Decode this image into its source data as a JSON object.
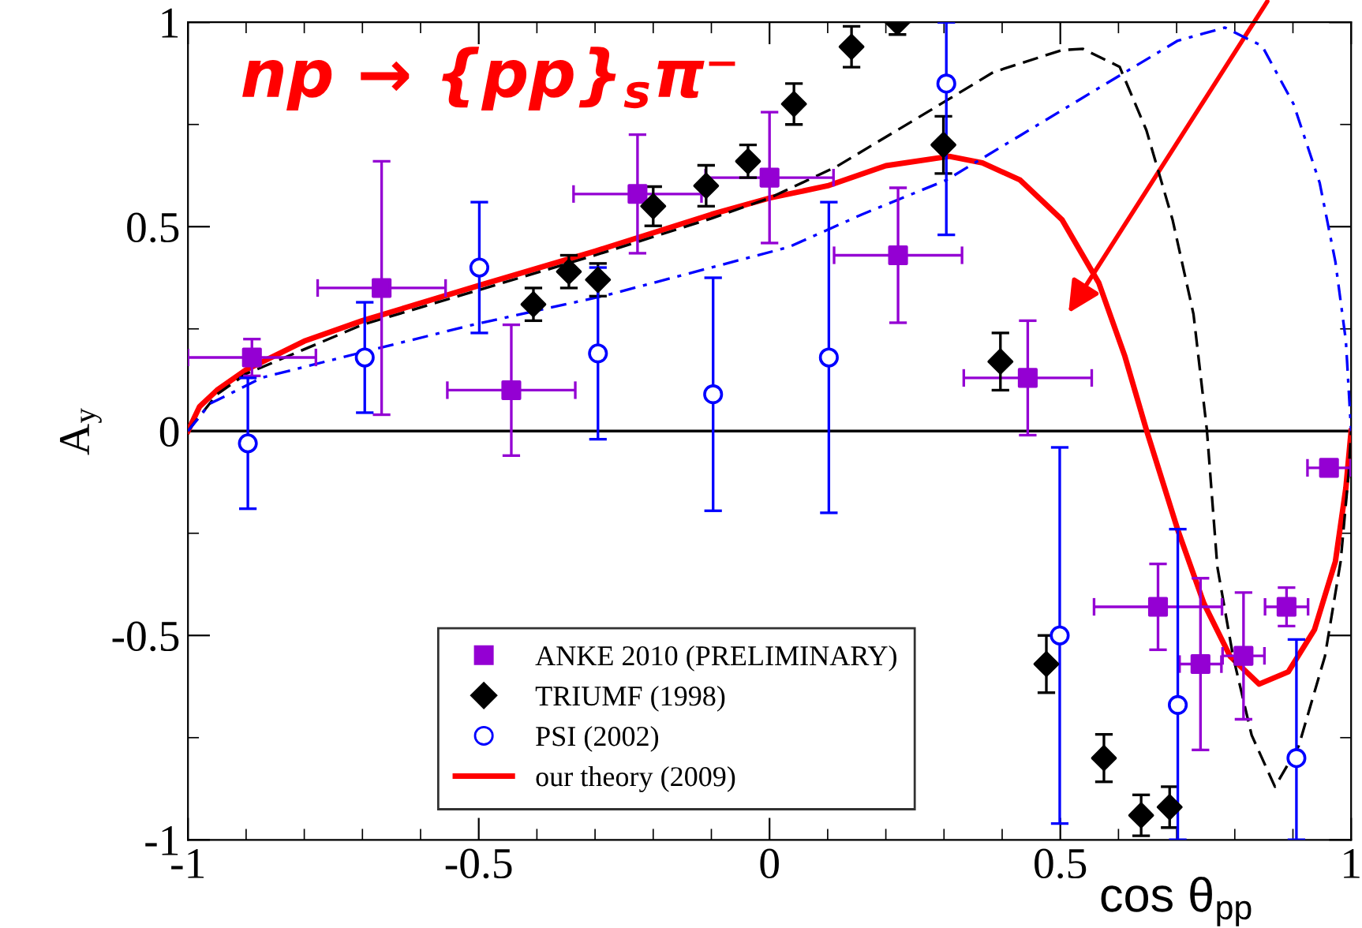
{
  "chart_data": {
    "type": "scatter",
    "title": "np → {pp}$_{s}$π⁻",
    "xlabel": "cos θ$_{pp}$",
    "ylabel": "A$_{y}$",
    "xlim": [
      -1,
      1
    ],
    "ylim": [
      -1,
      1
    ],
    "xticks": [
      -1,
      -0.5,
      0,
      0.5,
      1
    ],
    "yticks": [
      -1,
      -0.5,
      0,
      0.5,
      1
    ],
    "grid": false,
    "legend": "bottom",
    "ref_lines": [
      {
        "axis": "y",
        "value": 0,
        "color": "#000000",
        "line_style": "solid"
      }
    ],
    "series": [
      {
        "name": "ANKE 2010 (PRELIMINARY)",
        "color": "#9400d3",
        "marker": "square",
        "x": [
          -0.89,
          -0.667,
          -0.444,
          -0.227,
          0.0,
          0.221,
          0.444,
          0.668,
          0.741,
          0.815,
          0.889,
          0.962
        ],
        "values": [
          0.18,
          0.35,
          0.1,
          0.58,
          0.62,
          0.43,
          0.13,
          -0.43,
          -0.57,
          -0.55,
          -0.43,
          -0.09
        ],
        "errors": [
          0.045,
          0.31,
          0.16,
          0.145,
          0.16,
          0.165,
          0.14,
          0.105,
          0.21,
          0.155,
          0.047,
          0.015
        ],
        "xerrors": [
          0.11,
          0.11,
          0.11,
          0.11,
          0.11,
          0.11,
          0.11,
          0.11,
          0.036,
          0.036,
          0.037,
          0.037
        ]
      },
      {
        "name": "TRIUMF (1998)",
        "color": "#000000",
        "marker": "diamond",
        "x": [
          -0.406,
          -0.345,
          -0.295,
          -0.2,
          -0.109,
          -0.037,
          0.042,
          0.141,
          0.22,
          0.299,
          0.397,
          0.476,
          0.575,
          0.639,
          0.688
        ],
        "values": [
          0.31,
          0.39,
          0.37,
          0.55,
          0.6,
          0.66,
          0.8,
          0.94,
          1.0,
          0.7,
          0.17,
          -0.57,
          -0.8,
          -0.94,
          -0.92
        ],
        "errors": [
          0.04,
          0.04,
          0.04,
          0.048,
          0.05,
          0.04,
          0.05,
          0.05,
          [
            0.97,
            1.0
          ],
          0.07,
          0.07,
          0.07,
          0.058,
          0.05,
          0.05
        ]
      },
      {
        "name": "PSI (2002)",
        "color": "#0000ff",
        "marker": "circle",
        "x": [
          -0.897,
          -0.696,
          -0.499,
          -0.295,
          -0.097,
          0.102,
          0.304,
          0.499,
          0.702,
          0.906
        ],
        "values": [
          -0.03,
          0.18,
          0.4,
          0.19,
          0.09,
          0.18,
          0.85,
          -0.5,
          -0.67,
          -0.8
        ],
        "errors": [
          0.16,
          0.135,
          0.16,
          0.21,
          0.285,
          0.38,
          [
            0.48,
            1.0
          ],
          0.46,
          [
            -1.0,
            -0.24
          ],
          [
            -1.0,
            -0.51
          ]
        ]
      },
      {
        "name": "our theory (2009)",
        "type": "line",
        "color": "#ff0000",
        "line_style": "solid",
        "marker": "none",
        "x": [
          -1,
          -0.98,
          -0.95,
          -0.9,
          -0.8,
          -0.7,
          -0.5,
          -0.3,
          -0.1,
          0.0,
          0.1,
          0.2,
          0.309,
          0.366,
          0.431,
          0.503,
          0.566,
          0.611,
          0.648,
          0.702,
          0.747,
          0.792,
          0.842,
          0.892,
          0.937,
          0.973,
          0.991,
          1.0
        ],
        "values": [
          0,
          0.06,
          0.1,
          0.15,
          0.22,
          0.27,
          0.356,
          0.44,
          0.53,
          0.57,
          0.6,
          0.649,
          0.672,
          0.656,
          0.614,
          0.517,
          0.363,
          0.183,
          0.003,
          -0.242,
          -0.422,
          -0.551,
          -0.619,
          -0.589,
          -0.486,
          -0.319,
          -0.139,
          0
        ]
      },
      {
        "type": "line",
        "color": "#000000",
        "line_style": "dashed",
        "marker": "none",
        "x": [
          -1,
          -0.95,
          -0.9,
          -0.7,
          -0.5,
          -0.3,
          -0.1,
          0.0,
          0.114,
          0.25,
          0.385,
          0.503,
          0.539,
          0.602,
          0.648,
          0.693,
          0.729,
          0.752,
          0.77,
          0.797,
          0.829,
          0.869,
          0.91,
          0.955,
          0.982,
          0.996,
          1.0
        ],
        "values": [
          0,
          0.09,
          0.14,
          0.26,
          0.345,
          0.43,
          0.52,
          0.57,
          0.646,
          0.762,
          0.878,
          0.932,
          0.935,
          0.891,
          0.736,
          0.517,
          0.286,
          0.003,
          -0.332,
          -0.551,
          -0.744,
          -0.87,
          -0.77,
          -0.551,
          -0.319,
          -0.1,
          0
        ]
      },
      {
        "type": "line",
        "color": "#0000ff",
        "line_style": "dashdot",
        "marker": "none",
        "x": [
          -1,
          -0.962,
          -0.872,
          -0.691,
          -0.51,
          -0.284,
          0.033,
          0.159,
          0.304,
          0.431,
          0.566,
          0.702,
          0.783,
          0.847,
          0.901,
          0.946,
          0.973,
          0.991,
          1.0
        ],
        "values": [
          0,
          0.067,
          0.131,
          0.196,
          0.26,
          0.331,
          0.45,
          0.53,
          0.614,
          0.723,
          0.839,
          0.955,
          0.987,
          0.942,
          0.8,
          0.607,
          0.414,
          0.221,
          0
        ]
      }
    ]
  }
}
